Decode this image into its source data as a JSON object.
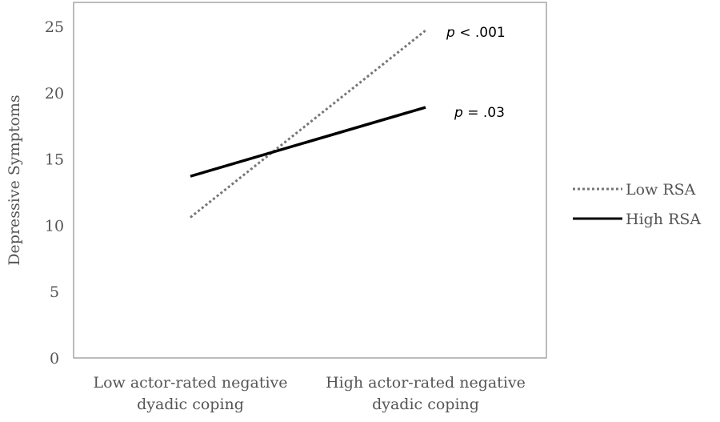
{
  "chart_data": {
    "type": "line",
    "title": "",
    "xlabel": "",
    "ylabel": "Depressive Symptoms",
    "ylim": [
      0,
      25
    ],
    "yticks": [
      "0",
      "5",
      "10",
      "15",
      "20",
      "25"
    ],
    "categories": [
      [
        "Low actor-rated negative",
        "dyadic coping"
      ],
      [
        "High actor-rated negative",
        "dyadic coping"
      ]
    ],
    "series": [
      {
        "name": "Low RSA",
        "values": [
          10.6,
          24.7
        ],
        "style": "dotted",
        "color": "#777777",
        "annotation": {
          "p": "p",
          "rest": " < .001"
        }
      },
      {
        "name": "High RSA",
        "values": [
          13.7,
          18.9
        ],
        "style": "solid",
        "color": "#000000",
        "annotation": {
          "p": "p",
          "rest": " = .03"
        }
      }
    ],
    "grid": false,
    "legend": "right"
  }
}
